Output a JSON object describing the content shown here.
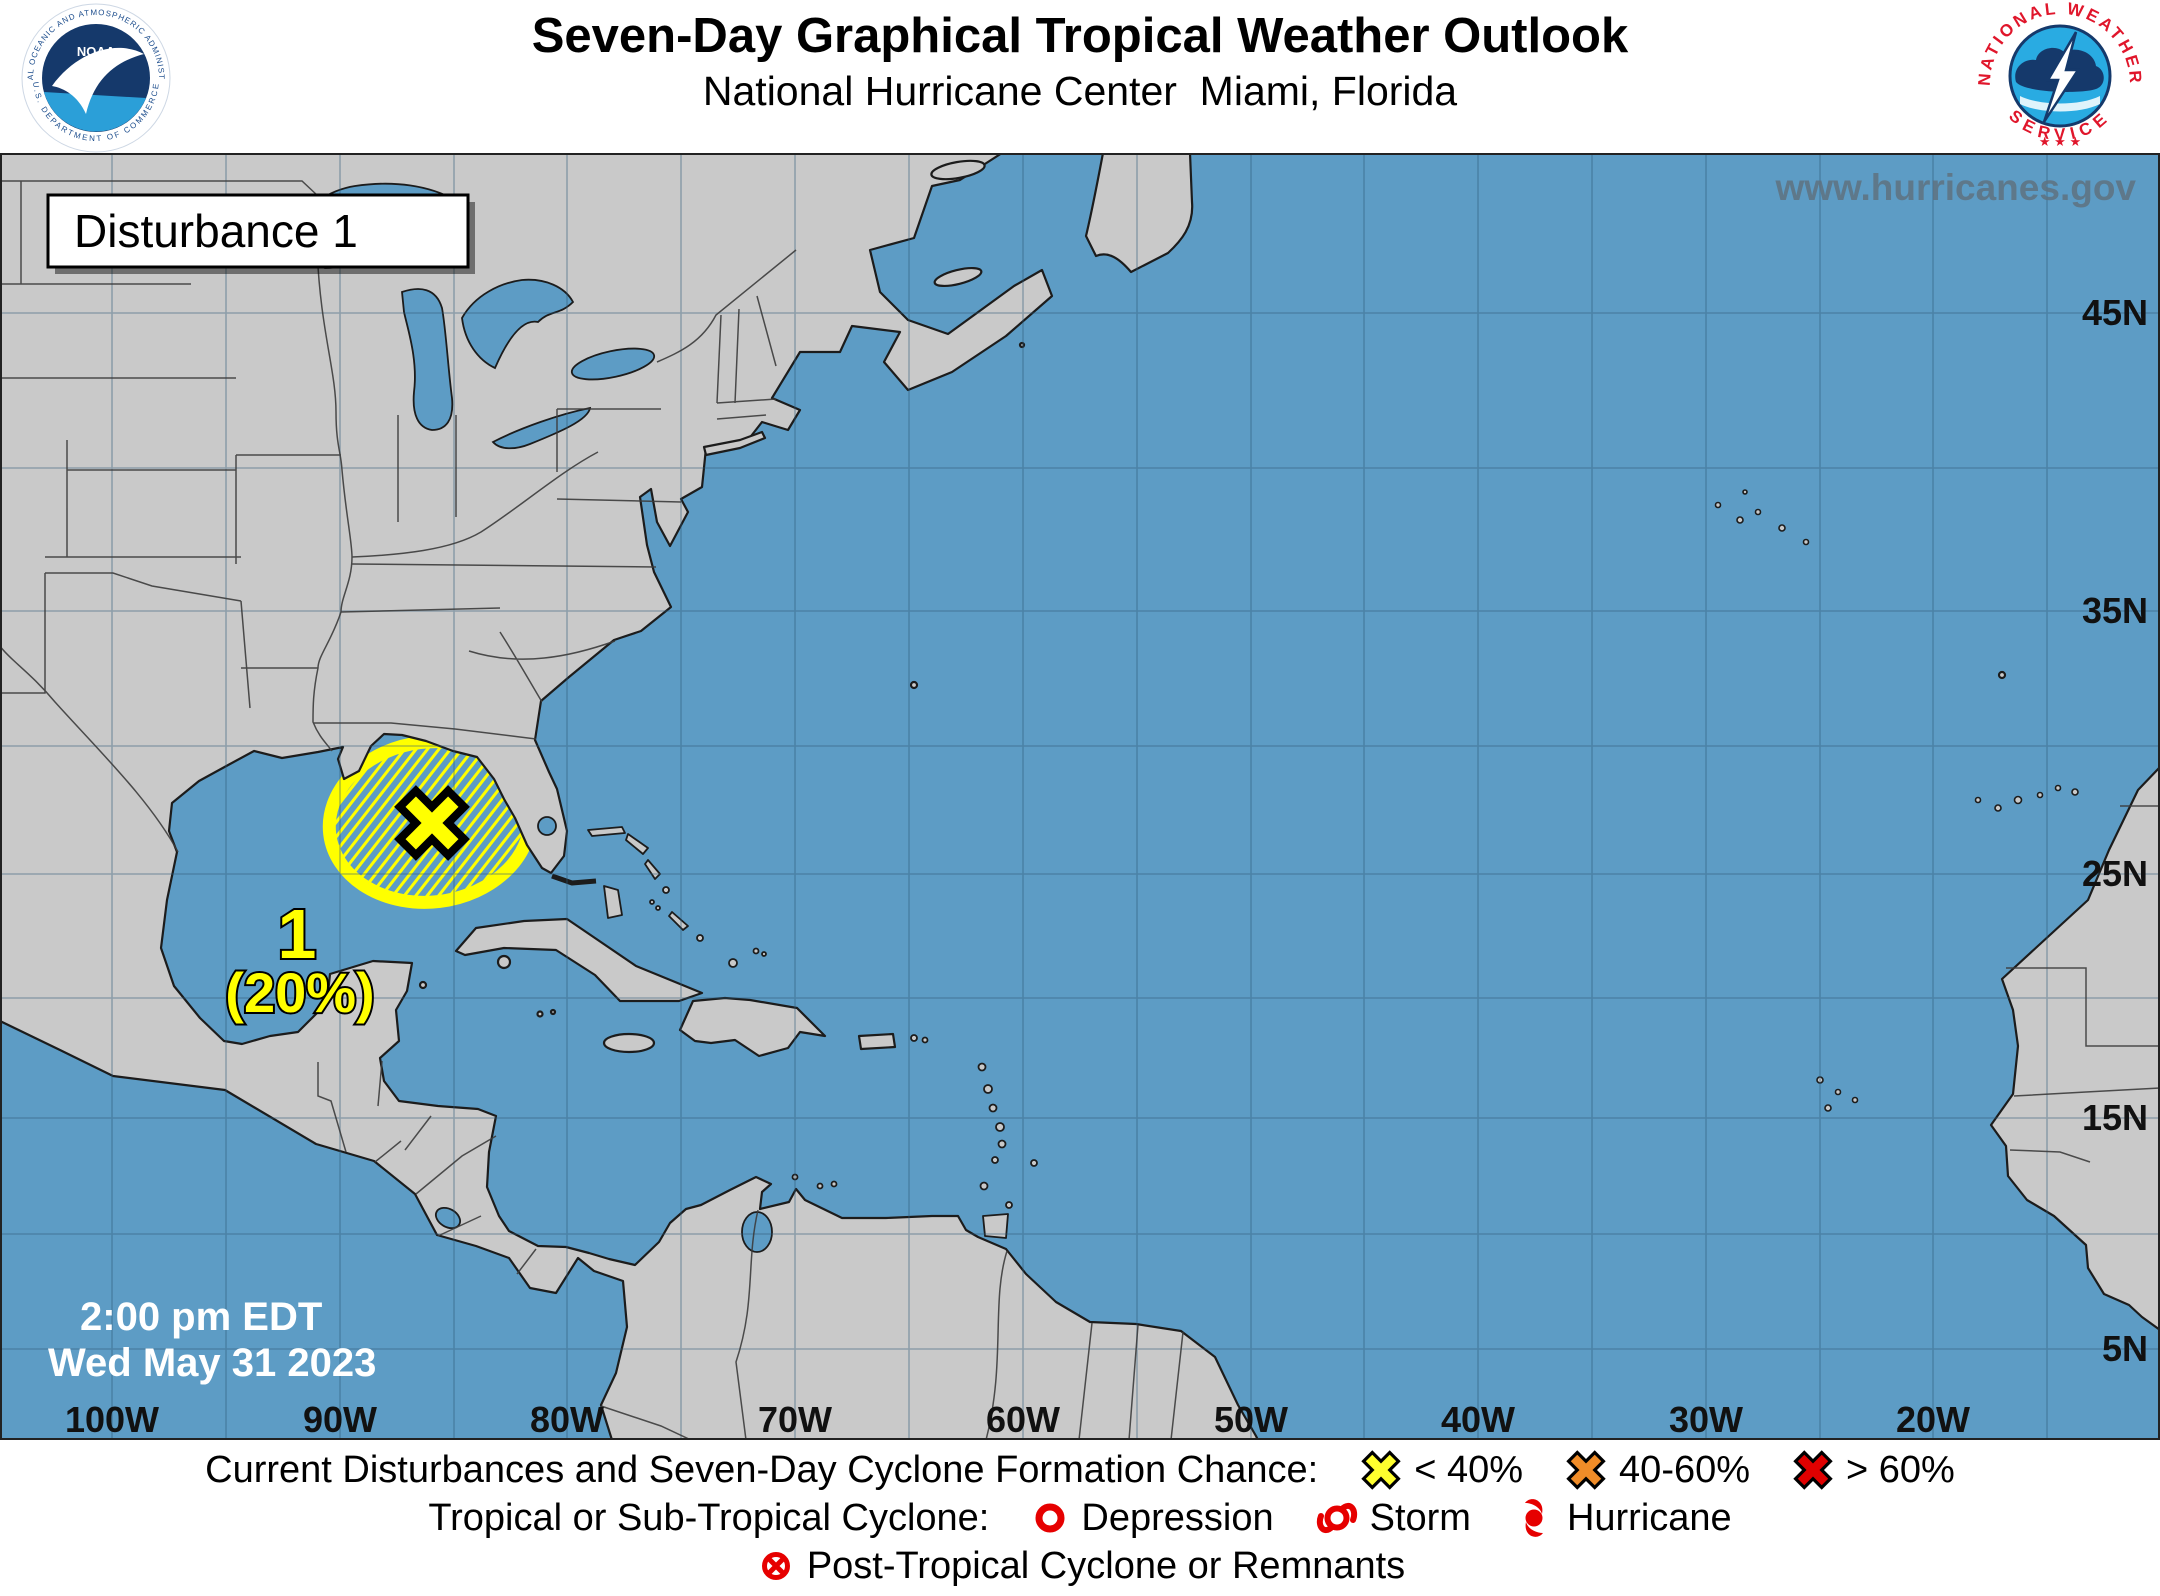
{
  "header": {
    "title": "Seven-Day Graphical Tropical Weather Outlook",
    "subtitle": "National Hurricane Center  Miami, Florida",
    "noaa_ring_top": "NATIONAL OCEANIC AND ATMOSPHERIC ADMINISTRATION",
    "noaa_ring_bottom": "U.S. DEPARTMENT OF COMMERCE",
    "noaa_text": "NOAA",
    "nws_ring_top": "NATIONAL WEATHER",
    "nws_ring_bottom": "SERVICE",
    "nws_stars": "★ ★ ★"
  },
  "map": {
    "watermark": "www.hurricanes.gov",
    "disturbance_label": "Disturbance 1",
    "disturbance": {
      "id": "1",
      "formation_chance": "(20%)",
      "risk": "low (< 40%)",
      "location": "eastern Gulf of Mexico"
    },
    "timestamp_line1": "2:00 pm EDT",
    "timestamp_line2": "Wed May 31 2023",
    "lat_labels": [
      "45N",
      "35N",
      "25N",
      "15N",
      "5N"
    ],
    "lon_labels": [
      "100W",
      "90W",
      "80W",
      "70W",
      "60W",
      "50W",
      "40W",
      "30W",
      "20W"
    ],
    "colors": {
      "ocean": "#5d9cc5",
      "land": "#c9c9c9",
      "disturbance_low": "#ffff00"
    }
  },
  "legend": {
    "chance_label": "Current Disturbances and Seven-Day Cyclone Formation Chance:",
    "chance_items": [
      {
        "label": "< 40%",
        "color": "#ffff2e"
      },
      {
        "label": "40-60%",
        "color": "#f08c28"
      },
      {
        "label": "> 60%",
        "color": "#e00000"
      }
    ],
    "cyclone_label": "Tropical or Sub-Tropical Cyclone:",
    "cyclone_items": [
      {
        "label": "Depression"
      },
      {
        "label": "Storm"
      },
      {
        "label": "Hurricane"
      }
    ],
    "post_label": "Post-Tropical Cyclone or Remnants"
  }
}
